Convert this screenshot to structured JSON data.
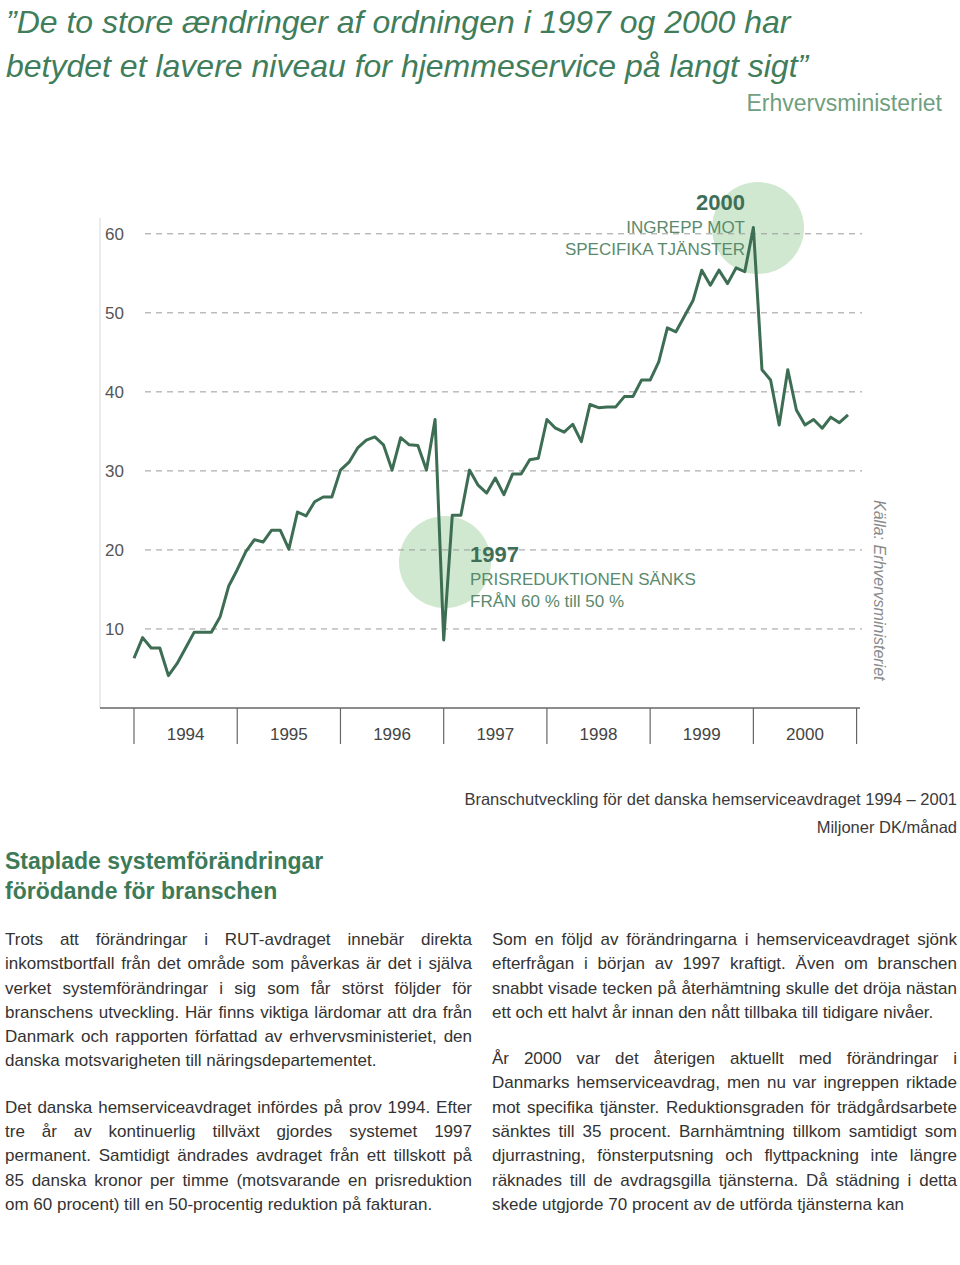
{
  "page": {
    "quote": [
      "”De to store ændringer af ordningen i 1997 og 2000 har",
      "betydet et lavere niveau for hjemmeservice på langt sigt”"
    ],
    "quote_source": "Erhvervsministeriet",
    "heading": [
      "Staplade systemförändringar",
      "förödande för branschen"
    ],
    "columns": [
      [
        "Trots att förändringar i RUT-avdraget innebär direkta inkomstbortfall från det område som påverkas är det i själva verket systemförändringar i sig som får störst följder för branschens utveckling. Här finns viktiga lärdomar att dra från Danmark och rapporten författad av erhvervsministeriet, den danska motsvarigheten till näringsdepartementet.",
        "Det danska hemserviceavdraget infördes på prov 1994. Efter tre år av kontinuerlig tillväxt gjordes systemet 1997 permanent. Samtidigt ändrades avdraget från ett tillskott på 85 danska kronor per timme (motsvarande en prisreduktion om 60 procent) till en 50-procentig reduktion på fakturan."
      ],
      [
        "Som en följd av förändringarna i hemserviceavdraget sjönk efterfrågan i början av 1997 kraftigt. Även om branschen snabbt visade tecken på återhämtning skulle det dröja nästan ett och ett halvt år innan den nått tillbaka till tidigare nivåer.",
        "År 2000 var det återigen aktuellt med förändringar i Danmarks hemserviceavdrag, men nu var ingreppen riktade mot specifika tjänster. Reduktionsgraden för trädgårdsarbete sänktes till 35 procent. Barnhämtning tillkom samtidigt som djurrastning, fönsterputsning och flyttpackning inte längre räknades till de avdragsgilla tjänsterna. Då städning i detta skede utgjorde 70 procent av de utförda tjänsterna kan"
      ]
    ]
  },
  "chart_data": {
    "type": "line",
    "title": "Branschutveckling för det danska hemserviceavdraget 1994 – 2001",
    "y_label": "Miljoner DK/månad",
    "source": "Källa: Erhvervsministeriet",
    "categories": [
      null,
      null,
      null,
      null,
      null,
      null,
      "1994",
      null,
      null,
      null,
      null,
      null,
      null,
      null,
      null,
      null,
      null,
      null,
      "1995",
      null,
      null,
      null,
      null,
      null,
      null,
      null,
      null,
      null,
      null,
      null,
      "1996",
      null,
      null,
      null,
      null,
      null,
      null,
      null,
      null,
      null,
      null,
      null,
      "1997",
      null,
      null,
      null,
      null,
      null,
      null,
      null,
      null,
      null,
      null,
      null,
      "1998",
      null,
      null,
      null,
      null,
      null,
      null,
      null,
      null,
      null,
      null,
      null,
      "1999",
      null,
      null,
      null,
      null,
      null,
      null,
      null,
      null,
      null,
      null,
      null,
      "2000",
      null,
      null,
      null,
      null,
      null
    ],
    "values": [
      6.3,
      8.9,
      7.6,
      7.6,
      4.1,
      5.6,
      7.6,
      9.6,
      9.6,
      9.6,
      11.5,
      15.4,
      17.5,
      19.8,
      21.3,
      21.0,
      22.5,
      22.5,
      20.1,
      24.8,
      24.3,
      26.1,
      26.7,
      26.7,
      30.1,
      31.1,
      32.9,
      33.9,
      34.3,
      33.3,
      30.1,
      34.2,
      33.3,
      33.2,
      30.1,
      36.5,
      8.6,
      24.4,
      24.4,
      30.1,
      28.2,
      27.2,
      29.1,
      27.0,
      29.6,
      29.6,
      31.4,
      31.6,
      36.5,
      35.4,
      34.9,
      35.9,
      33.7,
      38.4,
      38.0,
      38.1,
      38.1,
      39.4,
      39.4,
      41.5,
      41.5,
      43.8,
      48.1,
      47.6,
      49.6,
      51.6,
      55.4,
      53.5,
      55.4,
      53.7,
      55.7,
      55.2,
      60.8,
      42.8,
      41.5,
      35.8,
      42.8,
      37.7,
      35.8,
      36.5,
      35.4,
      36.8,
      36.1,
      37.1
    ],
    "color": "#3d6e54",
    "ylim": [
      0,
      62
    ],
    "yticks": [
      10,
      20,
      30,
      40,
      50,
      60
    ],
    "grid": true,
    "annotations": [
      {
        "title": "2000",
        "text": [
          "INGREPP MOT",
          "SPECIFIKA TJÄNSTER"
        ]
      },
      {
        "title": "1997",
        "text": [
          "PRISREDUKTIONEN SÄNKS",
          "FRÅN 60 % till 50 %"
        ]
      }
    ]
  }
}
